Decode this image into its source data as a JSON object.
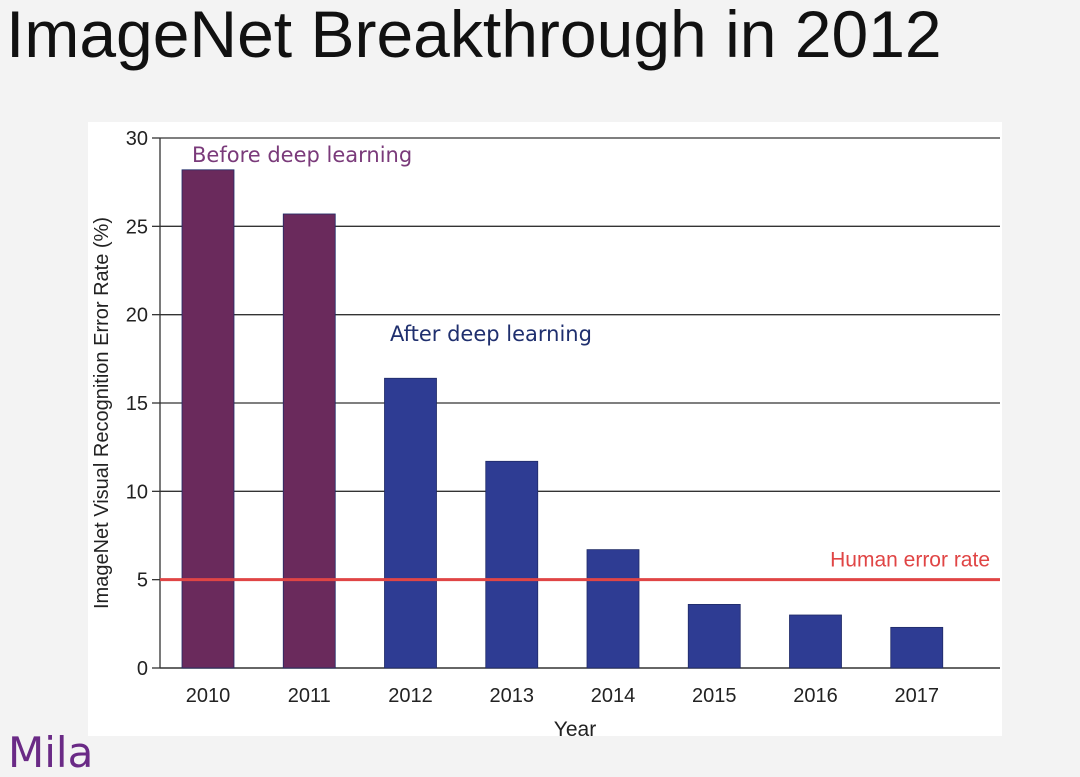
{
  "slide": {
    "title": "ImageNet Breakthrough in 2012",
    "logo": "Mila"
  },
  "colors": {
    "before": "#6a2a5c",
    "after": "#2e3c93",
    "human_line": "#e04545",
    "grid": "#333333",
    "axis_text": "#222222"
  },
  "chart_data": {
    "type": "bar",
    "title": "",
    "xlabel": "Year",
    "ylabel": "ImageNet Visual Recognition Error Rate (%)",
    "categories": [
      "2010",
      "2011",
      "2012",
      "2013",
      "2014",
      "2015",
      "2016",
      "2017"
    ],
    "values": [
      28.2,
      25.7,
      16.4,
      11.7,
      6.7,
      3.6,
      3.0,
      2.3
    ],
    "eras": [
      "before",
      "before",
      "after",
      "after",
      "after",
      "after",
      "after",
      "after"
    ],
    "ylim": [
      0,
      30
    ],
    "yticks": [
      0,
      5,
      10,
      15,
      20,
      25,
      30
    ],
    "grid": true,
    "annotations": {
      "before": "Before deep learning",
      "after": "After deep learning",
      "human": "Human error rate"
    },
    "human_error_rate": 5
  }
}
